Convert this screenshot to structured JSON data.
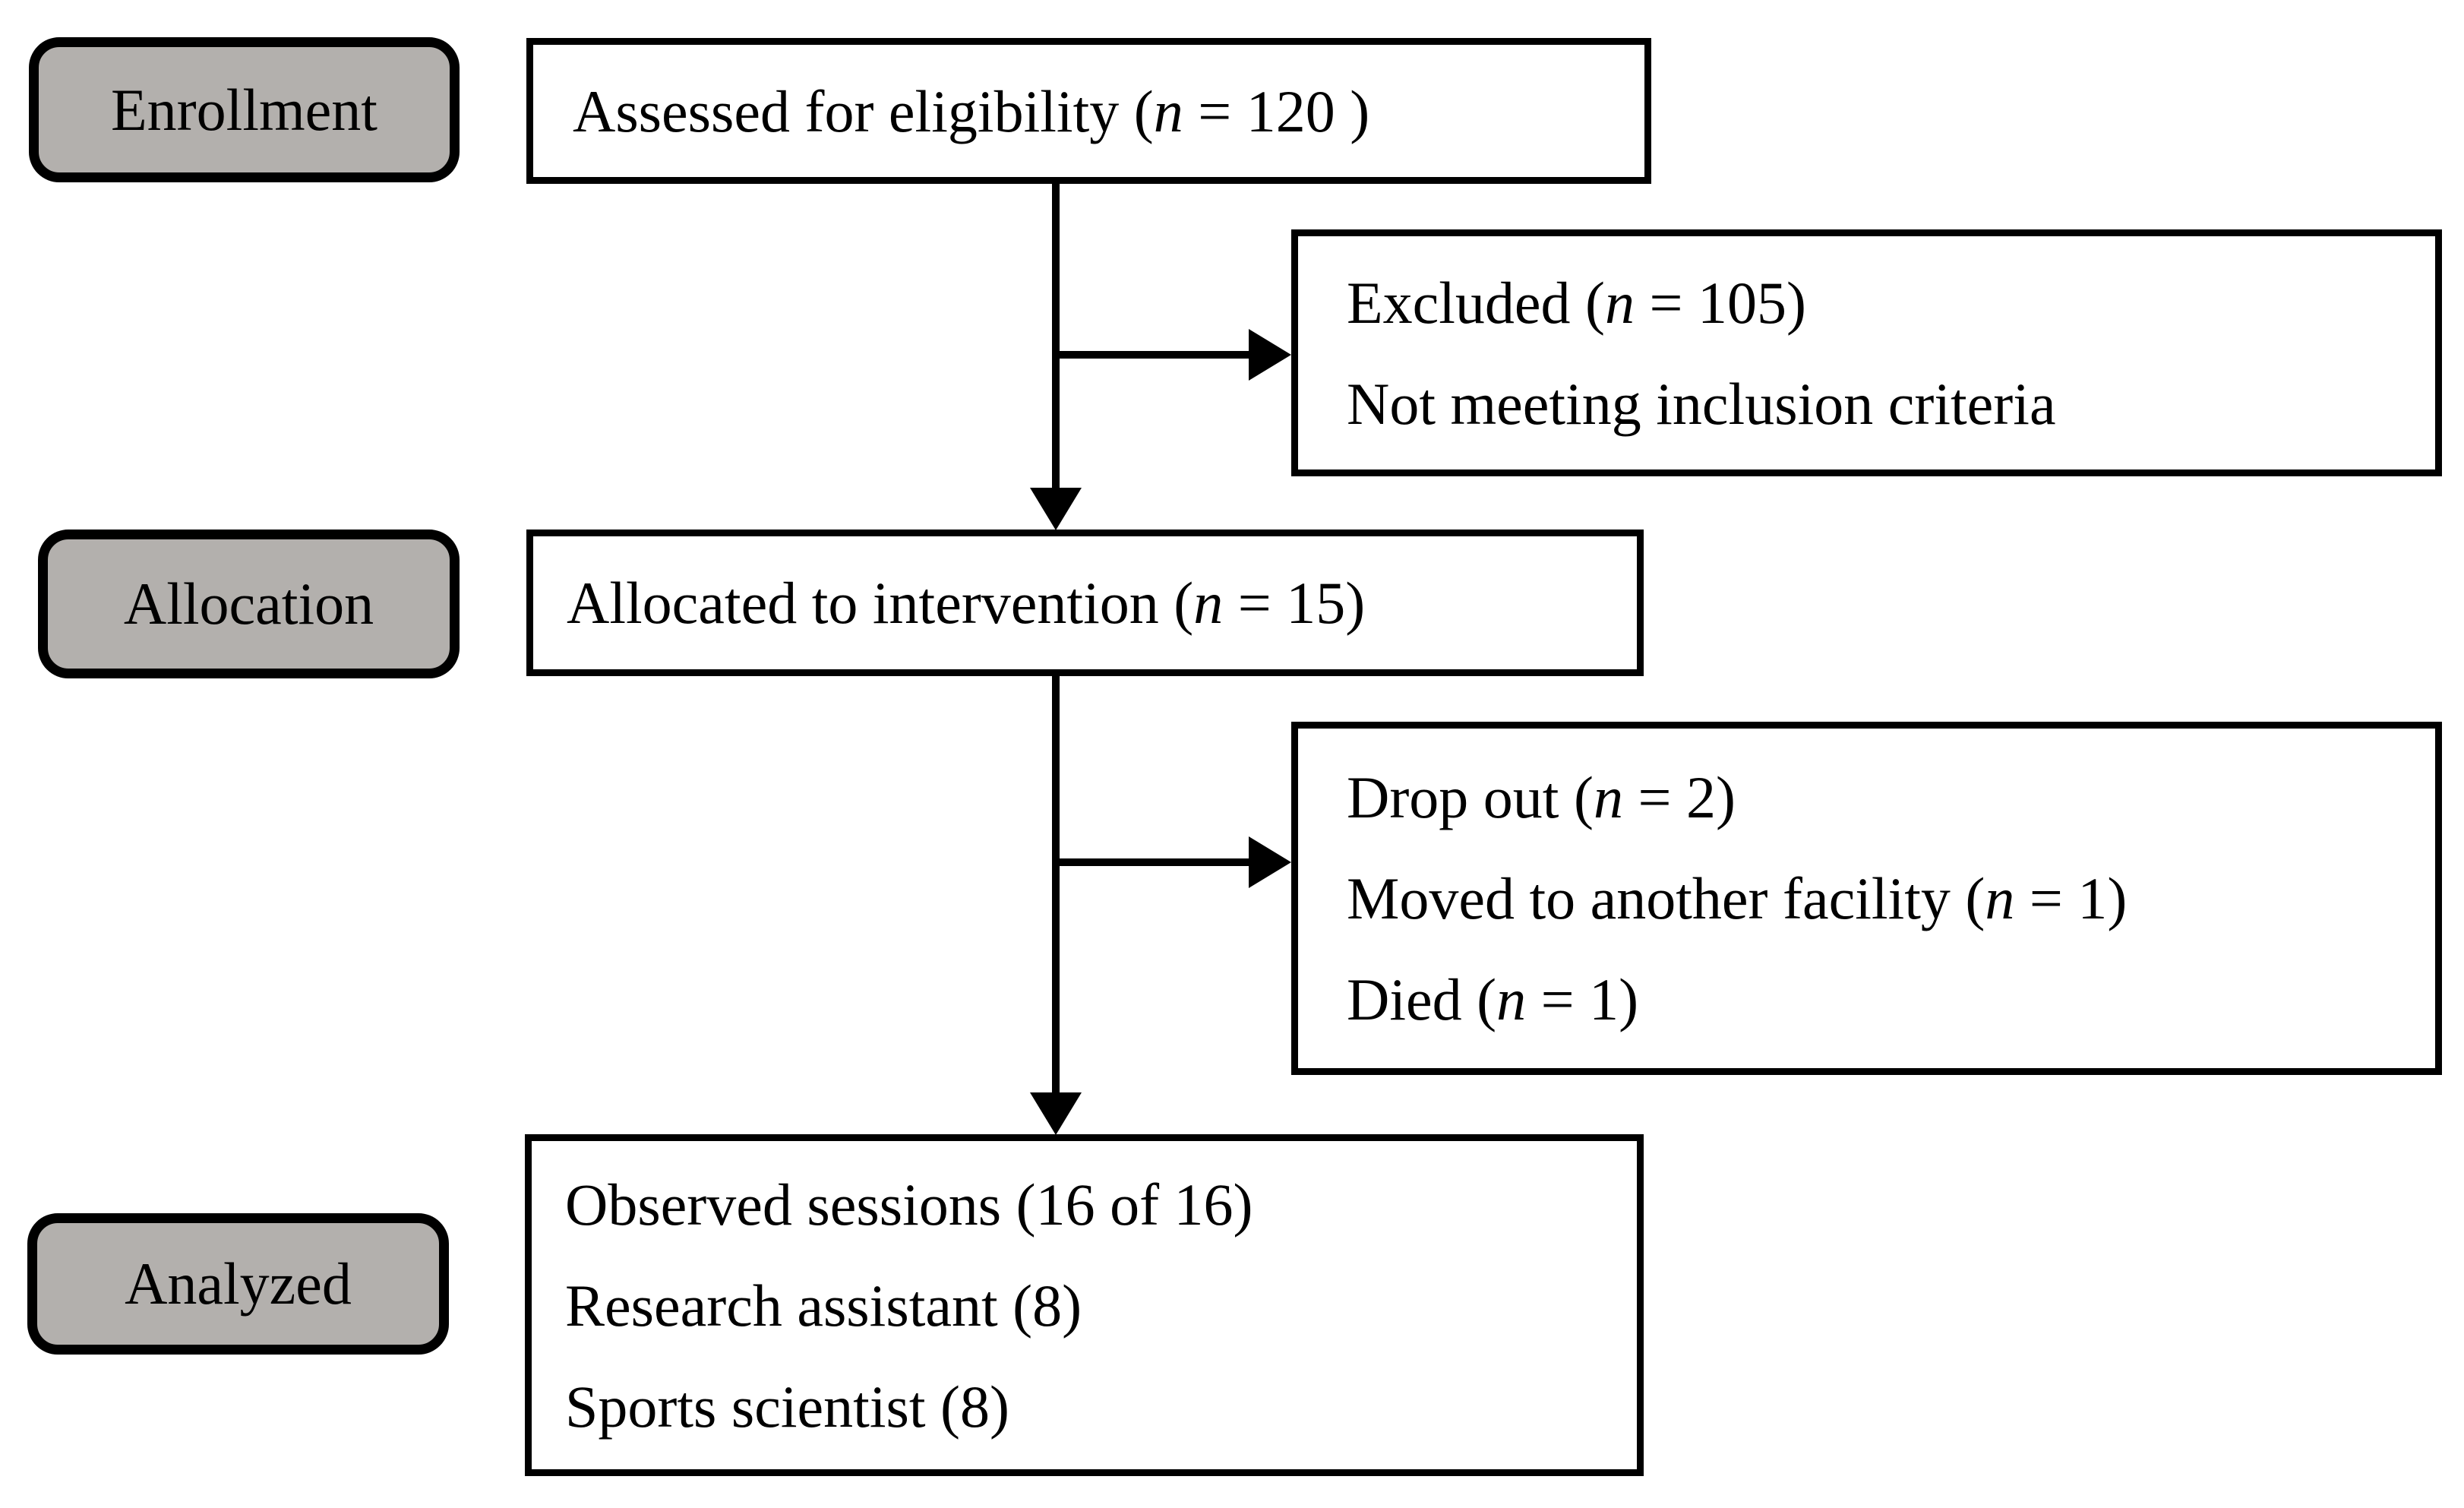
{
  "colors": {
    "background": "#ffffff",
    "stage_fill": "#b3b0ad",
    "box_fill": "#ffffff",
    "line": "#000000"
  },
  "diagram": {
    "stages": [
      {
        "label": "Enrollment"
      },
      {
        "label": "Allocation"
      },
      {
        "label": "Analyzed"
      }
    ],
    "boxes": {
      "assessed": {
        "lines": [
          "Assessed for eligibility (*n* = 120 )"
        ]
      },
      "excluded": {
        "lines": [
          "Excluded (*n* = 105)",
          "Not meeting inclusion criteria"
        ]
      },
      "allocated": {
        "lines": [
          "Allocated to intervention (*n* = 15)"
        ]
      },
      "dropout": {
        "lines": [
          "Drop out (*n* = 2)",
          "Moved to another facility (*n* = 1)",
          "Died (*n* = 1)"
        ]
      },
      "observed": {
        "lines": [
          "Observed sessions (16 of 16)",
          "Research assistant (8)",
          "Sports scientist (8)"
        ]
      }
    }
  }
}
